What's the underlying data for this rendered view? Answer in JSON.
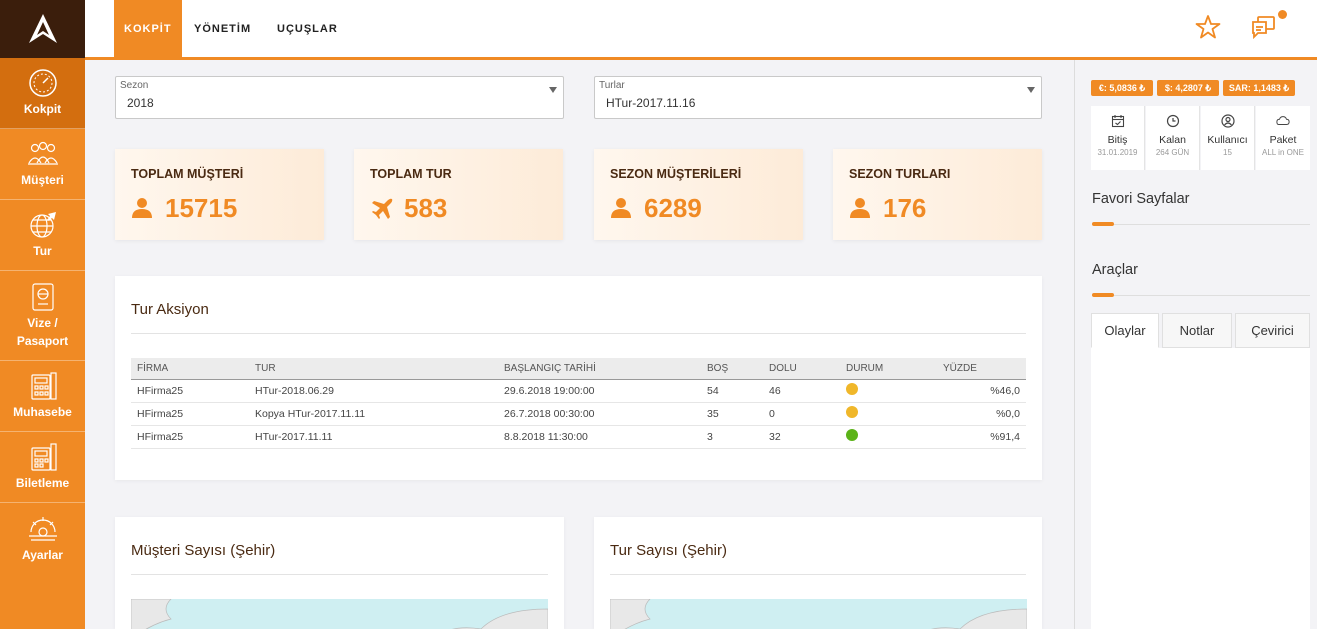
{
  "sidebar": {
    "items": [
      {
        "label": "Kokpit",
        "icon": "speedometer-icon"
      },
      {
        "label": "Müşteri",
        "icon": "customers-icon"
      },
      {
        "label": "Tur",
        "icon": "globe-plane-icon"
      },
      {
        "label": "Vize / Pasaport",
        "icon": "passport-icon"
      },
      {
        "label": "Muhasebe",
        "icon": "calculator-icon"
      },
      {
        "label": "Biletleme",
        "icon": "ticket-icon"
      },
      {
        "label": "Ayarlar",
        "icon": "settings-icon"
      }
    ]
  },
  "topbar": {
    "tabs": [
      "KOKPİT",
      "YÖNETİM",
      "UÇUŞLAR"
    ]
  },
  "filters": {
    "season": {
      "label": "Sezon",
      "value": "2018"
    },
    "tours": {
      "label": "Turlar",
      "value": "HTur-2017.11.16"
    }
  },
  "stats": [
    {
      "title": "TOPLAM MÜŞTERİ",
      "value": "15715",
      "icon": "user-icon"
    },
    {
      "title": "TOPLAM TUR",
      "value": "583",
      "icon": "plane-icon"
    },
    {
      "title": "SEZON MÜŞTERİLERİ",
      "value": "6289",
      "icon": "user-icon"
    },
    {
      "title": "SEZON TURLARI",
      "value": "176",
      "icon": "user-icon"
    }
  ],
  "tour_action": {
    "title": "Tur Aksiyon",
    "headers": [
      "FİRMA",
      "TUR",
      "BAŞLANGIÇ TARİHİ",
      "BOŞ",
      "DOLU",
      "DURUM",
      "YÜZDE"
    ],
    "rows": [
      {
        "firma": "HFirma25",
        "tur": "HTur-2018.06.29",
        "date": "29.6.2018 19:00:00",
        "bos": "54",
        "dolu": "46",
        "status_color": "#f0b72a",
        "yuzde": "%46,0"
      },
      {
        "firma": "HFirma25",
        "tur": "Kopya HTur-2017.11.11",
        "date": "26.7.2018 00:30:00",
        "bos": "35",
        "dolu": "0",
        "status_color": "#f0b72a",
        "yuzde": "%0,0"
      },
      {
        "firma": "HFirma25",
        "tur": "HTur-2017.11.11",
        "date": "8.8.2018 11:30:00",
        "bos": "3",
        "dolu": "32",
        "status_color": "#5bb318",
        "yuzde": "%91,4"
      }
    ]
  },
  "maps": {
    "customers_title": "Müşteri Sayısı (Şehir)",
    "tours_title": "Tur Sayısı (Şehir)"
  },
  "right_panel": {
    "rates": [
      "€: 5,0836 ₺",
      "$: 4,2807 ₺",
      "SAR: 1,1483 ₺"
    ],
    "info": [
      {
        "label": "Bitiş",
        "sub": "31.01.2019",
        "icon": "calendar-icon"
      },
      {
        "label": "Kalan",
        "sub": "264 GÜN",
        "icon": "clock-icon"
      },
      {
        "label": "Kullanıcı",
        "sub": "15",
        "icon": "user-circle-icon"
      },
      {
        "label": "Paket",
        "sub": "ALL in ONE",
        "icon": "cloud-icon"
      }
    ],
    "favorites_title": "Favori Sayfalar",
    "tools_title": "Araçlar",
    "tool_tabs": [
      "Olaylar",
      "Notlar",
      "Çevirici"
    ]
  },
  "colors": {
    "accent": "#f08a24",
    "sidebar_dark": "#3b1e0c"
  }
}
